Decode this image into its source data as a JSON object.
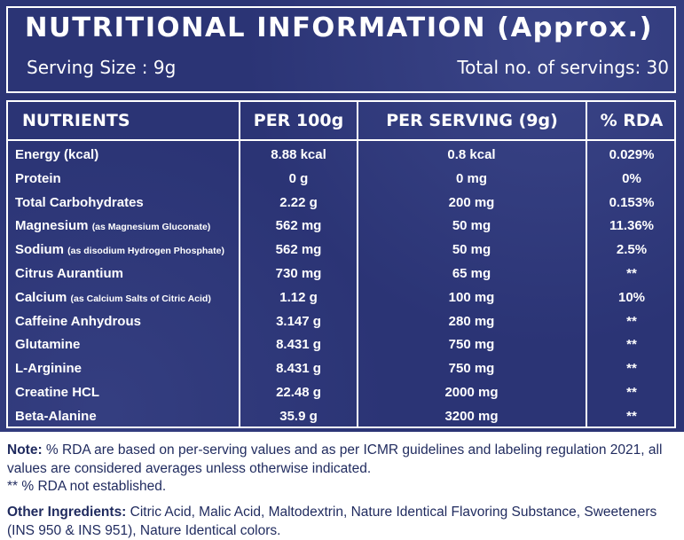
{
  "header": {
    "title": "NUTRITIONAL INFORMATION (Approx.)",
    "serving_size": "Serving Size : 9g",
    "total_servings": "Total no. of servings: 30"
  },
  "table": {
    "columns": [
      "NUTRIENTS",
      "PER 100g",
      "PER SERVING (9g)",
      "% RDA"
    ],
    "rows": [
      {
        "name": "Energy (kcal)",
        "sub": "",
        "per100": "8.88 kcal",
        "serving": "0.8 kcal",
        "rda": "0.029%"
      },
      {
        "name": "Protein",
        "sub": "",
        "per100": "0 g",
        "serving": "0 mg",
        "rda": "0%"
      },
      {
        "name": "Total Carbohydrates",
        "sub": "",
        "per100": "2.22 g",
        "serving": "200 mg",
        "rda": "0.153%"
      },
      {
        "name": "Magnesium",
        "sub": "(as Magnesium Gluconate)",
        "per100": "562 mg",
        "serving": "50 mg",
        "rda": "11.36%"
      },
      {
        "name": "Sodium",
        "sub": "(as disodium Hydrogen Phosphate)",
        "per100": "562 mg",
        "serving": "50 mg",
        "rda": "2.5%"
      },
      {
        "name": "Citrus Aurantium",
        "sub": "",
        "per100": "730 mg",
        "serving": "65 mg",
        "rda": "**"
      },
      {
        "name": "Calcium",
        "sub": "(as Calcium Salts of Citric Acid)",
        "per100": "1.12 g",
        "serving": "100 mg",
        "rda": "10%"
      },
      {
        "name": "Caffeine Anhydrous",
        "sub": "",
        "per100": "3.147 g",
        "serving": "280 mg",
        "rda": "**"
      },
      {
        "name": "Glutamine",
        "sub": "",
        "per100": "8.431 g",
        "serving": "750 mg",
        "rda": "**"
      },
      {
        "name": "L-Arginine",
        "sub": "",
        "per100": "8.431 g",
        "serving": "750 mg",
        "rda": "**"
      },
      {
        "name": "Creatine HCL",
        "sub": "",
        "per100": "22.48 g",
        "serving": "2000 mg",
        "rda": "**"
      },
      {
        "name": "Beta-Alanine",
        "sub": "",
        "per100": "35.9 g",
        "serving": "3200 mg",
        "rda": "**"
      }
    ]
  },
  "note": {
    "label": "Note:",
    "text": "% RDA are based on per-serving values and as per ICMR guidelines and labeling regulation 2021, all values are considered averages unless otherwise indicated.",
    "footnote": "** % RDA not established."
  },
  "ingredients": {
    "label": "Other Ingredients:",
    "text": "Citric Acid, Malic Acid, Maltodextrin, Nature Identical Flavoring Substance, Sweeteners (INS 950 & INS 951), Nature Identical colors."
  },
  "colors": {
    "panel_bg": "#2b3475",
    "text_light": "#ffffff",
    "text_dark": "#1f2a5e"
  }
}
